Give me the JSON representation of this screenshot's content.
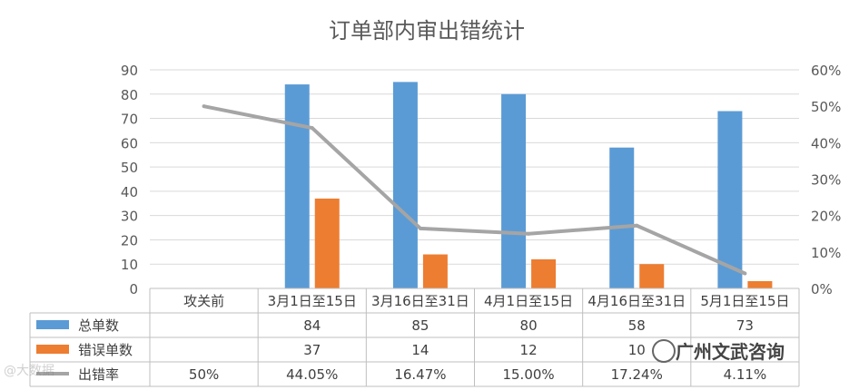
{
  "chart_data": {
    "type": "bar",
    "title": "订单部内审出错统计",
    "categories": [
      "攻关前",
      "3月1日至15日",
      "3月16日至31日",
      "4月1日至15日",
      "4月16日至31日",
      "5月1日至15日"
    ],
    "y_left_ticks": [
      "0",
      "10",
      "20",
      "30",
      "40",
      "50",
      "60",
      "70",
      "80",
      "90"
    ],
    "y_right_ticks": [
      "0%",
      "10%",
      "20%",
      "30%",
      "40%",
      "50%",
      "60%"
    ],
    "ylim_left": [
      0,
      90
    ],
    "ylim_right": [
      0,
      0.6
    ],
    "series": [
      {
        "name": "总单数",
        "type": "bar",
        "axis": "left",
        "color": "#5b9bd5",
        "values": [
          null,
          84,
          85,
          80,
          58,
          73
        ],
        "labels": [
          "",
          "84",
          "85",
          "80",
          "58",
          "73"
        ]
      },
      {
        "name": "错误单数",
        "type": "bar",
        "axis": "left",
        "color": "#ed7d31",
        "values": [
          null,
          37,
          14,
          12,
          10,
          3
        ],
        "labels": [
          "",
          "37",
          "14",
          "12",
          "10",
          ""
        ]
      },
      {
        "name": "出错率",
        "type": "line",
        "axis": "right",
        "color": "#a5a5a5",
        "values": [
          0.5,
          0.4405,
          0.1647,
          0.15,
          0.1724,
          0.0411
        ],
        "labels": [
          "50%",
          "44.05%",
          "16.47%",
          "15.00%",
          "17.24%",
          "4.11%"
        ]
      }
    ],
    "grid": true,
    "legend": "data-table"
  },
  "watermark": {
    "left": "@大数据",
    "right": "广州文武咨询"
  }
}
